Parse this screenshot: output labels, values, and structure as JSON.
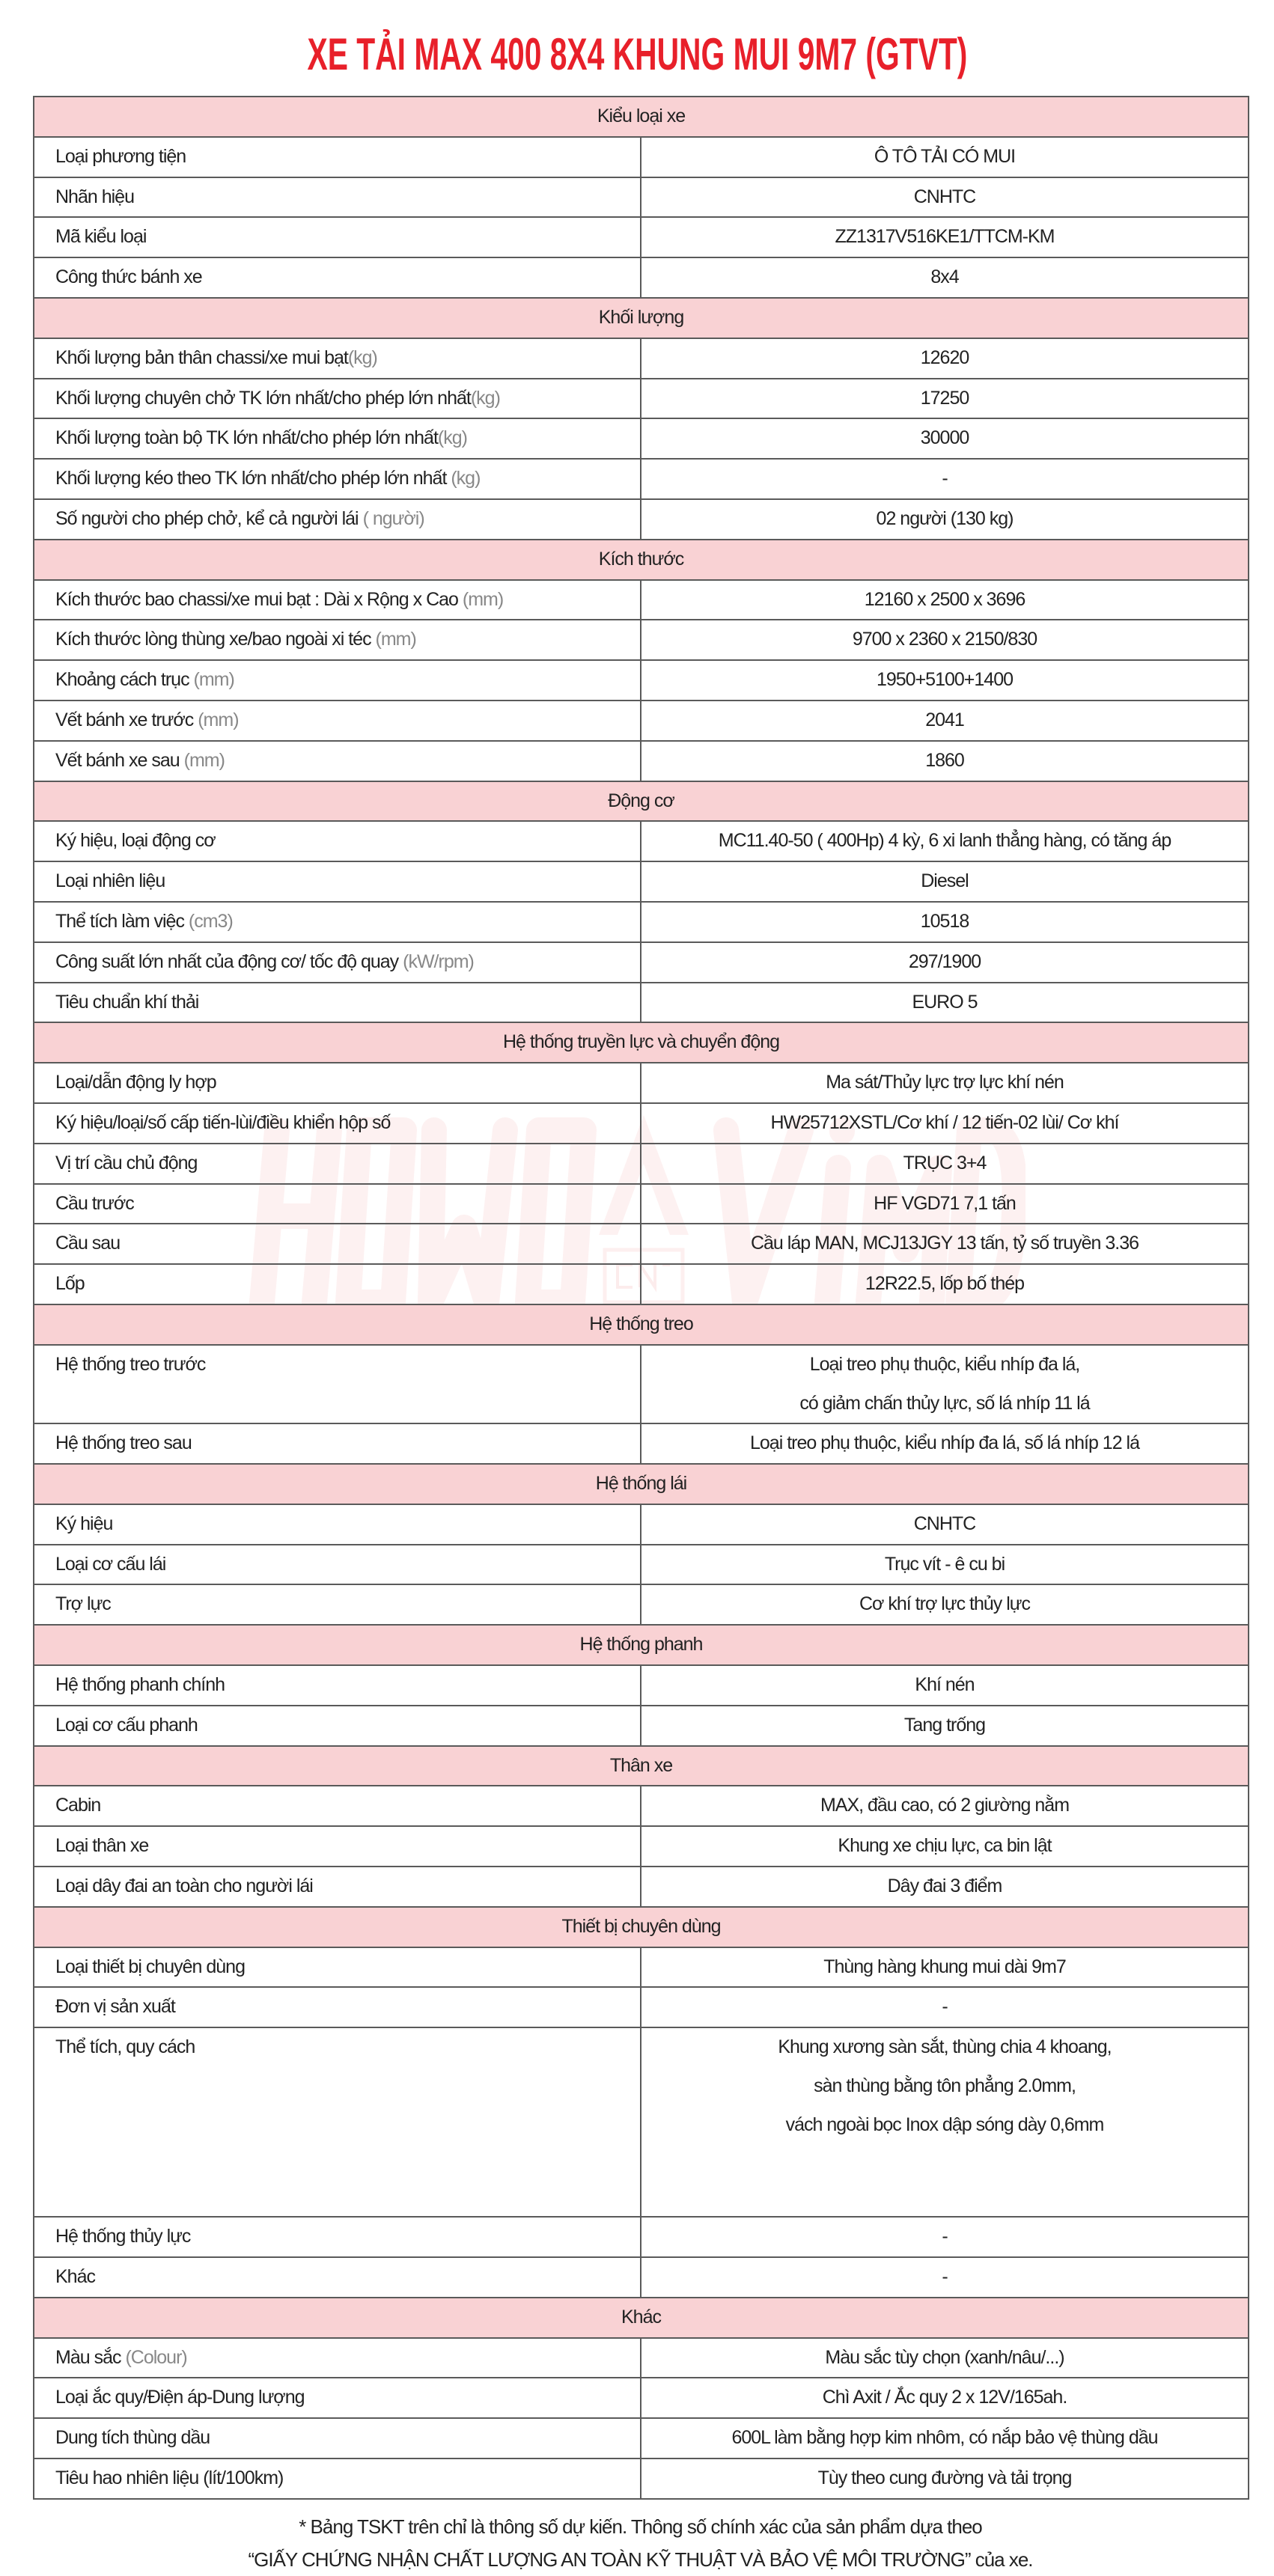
{
  "title": "XE TẢI MAX 400 8X4 KHUNG MUI 9M7 (GTVT)",
  "watermark": {
    "left": "HOWO",
    "right": "VIMID",
    "logo": "CNHTC"
  },
  "colors": {
    "title": "#e8202a",
    "section_bg": "#f9d2d4",
    "border": "#5a5a5a",
    "unit": "#888888"
  },
  "sections": [
    {
      "title": "Kiểu loại xe",
      "rows": [
        {
          "label": "Loại phương tiện",
          "unit": "",
          "value": [
            "Ô TÔ TẢI CÓ MUI"
          ]
        },
        {
          "label": "Nhãn hiệu",
          "unit": "",
          "value": [
            "CNHTC"
          ]
        },
        {
          "label": "Mã kiểu loại",
          "unit": "",
          "value": [
            "ZZ1317V516KE1/TTCM-KM"
          ]
        },
        {
          "label": "Công thức bánh xe",
          "unit": "",
          "value": [
            "8x4"
          ]
        }
      ]
    },
    {
      "title": "Khối lượng",
      "rows": [
        {
          "label": "Khối lượng bản thân chassi/xe mui bạt",
          "unit": "(kg)",
          "value": [
            "12620"
          ]
        },
        {
          "label": "Khối lượng chuyên chở TK lớn nhất/cho phép lớn nhất",
          "unit": "(kg)",
          "value": [
            "17250"
          ]
        },
        {
          "label": "Khối lượng toàn bộ TK lớn nhất/cho phép lớn nhất",
          "unit": "(kg)",
          "value": [
            "30000"
          ]
        },
        {
          "label": "Khối lượng kéo theo TK lớn nhất/cho phép lớn nhất ",
          "unit": "(kg)",
          "value": [
            "-"
          ]
        },
        {
          "label": "Số người cho phép chở, kể cả người lái ",
          "unit": "( người)",
          "value": [
            "02 người  (130 kg)"
          ]
        }
      ]
    },
    {
      "title": "Kích thước",
      "rows": [
        {
          "label": "Kích thước bao chassi/xe mui bạt : Dài x Rộng x Cao ",
          "unit": "(mm)",
          "value": [
            "12160 x 2500 x 3696"
          ]
        },
        {
          "label": "Kích thước lòng thùng xe/bao ngoài xi téc ",
          "unit": "(mm)",
          "value": [
            "9700 x 2360 x 2150/830"
          ]
        },
        {
          "label": "Khoảng cách trục ",
          "unit": "(mm)",
          "value": [
            "1950+5100+1400"
          ]
        },
        {
          "label": "Vết bánh xe trước ",
          "unit": "(mm)",
          "value": [
            "2041"
          ]
        },
        {
          "label": "Vết bánh xe sau ",
          "unit": "(mm)",
          "value": [
            "1860"
          ]
        }
      ]
    },
    {
      "title": "Động cơ",
      "rows": [
        {
          "label": "Ký hiệu, loại động cơ",
          "unit": "",
          "value": [
            "MC11.40-50 ( 400Hp) 4 kỳ, 6 xi lanh thẳng hàng, có tăng áp"
          ]
        },
        {
          "label": "Loại nhiên liệu",
          "unit": "",
          "value": [
            "Diesel"
          ]
        },
        {
          "label": "Thể tích làm việc ",
          "unit": "(cm3)",
          "value": [
            "10518"
          ]
        },
        {
          "label": "Công suất lớn nhất của động cơ/ tốc độ quay ",
          "unit": "(kW/rpm)",
          "value": [
            "297/1900"
          ]
        },
        {
          "label": "Tiêu chuẩn khí thải",
          "unit": "",
          "value": [
            "EURO 5"
          ]
        }
      ]
    },
    {
      "title": "Hệ thống truyền lực và chuyển động",
      "rows": [
        {
          "label": "Loại/dẫn động ly hợp",
          "unit": "",
          "value": [
            "Ma sát/Thủy lực trợ lực khí nén"
          ]
        },
        {
          "label": "Ký hiệu/loại/số cấp tiến-lùi/điều khiển hộp số",
          "unit": "",
          "value": [
            "HW25712XSTL/Cơ khí / 12 tiến-02 lùi/ Cơ khí"
          ]
        },
        {
          "label": "Vị trí cầu chủ động",
          "unit": "",
          "value": [
            "TRỤC 3+4"
          ]
        },
        {
          "label": "Cầu trước",
          "unit": "",
          "value": [
            "HF VGD71   7,1 tấn"
          ]
        },
        {
          "label": "Cầu sau",
          "unit": "",
          "value": [
            "Cầu láp MAN, MCJ13JGY 13 tấn, tỷ số truyền 3.36"
          ]
        },
        {
          "label": "Lốp",
          "unit": "",
          "value": [
            "12R22.5, lốp bố thép"
          ]
        }
      ]
    },
    {
      "title": "Hệ thống treo",
      "rows": [
        {
          "label": "Hệ thống treo trước",
          "unit": "",
          "value": [
            "Loại treo phụ thuộc, kiểu nhíp đa lá,",
            "có giảm chấn thủy lực, số lá nhíp 11 lá"
          ]
        },
        {
          "label": "Hệ thống treo sau",
          "unit": "",
          "value": [
            "Loại treo phụ thuộc, kiểu nhíp đa lá, số lá nhíp 12 lá"
          ]
        }
      ]
    },
    {
      "title": "Hệ thống lái",
      "rows": [
        {
          "label": "Ký hiệu",
          "unit": "",
          "value": [
            "CNHTC"
          ]
        },
        {
          "label": "Loại cơ cấu lái",
          "unit": "",
          "value": [
            "Trục vít - ê cu bi"
          ]
        },
        {
          "label": "Trợ lực",
          "unit": "",
          "value": [
            "Cơ khí trợ lực thủy lực"
          ]
        }
      ]
    },
    {
      "title": "Hệ thống phanh",
      "rows": [
        {
          "label": "Hệ thống phanh chính",
          "unit": "",
          "value": [
            "Khí nén"
          ]
        },
        {
          "label": "Loại cơ cấu phanh",
          "unit": "",
          "value": [
            "Tang trống"
          ]
        }
      ]
    },
    {
      "title": "Thân xe",
      "rows": [
        {
          "label": "Cabin",
          "unit": "",
          "value": [
            "MAX, đầu cao, có 2 giường nằm"
          ]
        },
        {
          "label": "Loại thân xe",
          "unit": "",
          "value": [
            "Khung xe chịu lực, ca bin lật"
          ]
        },
        {
          "label": "Loại dây đai an toàn cho người lái",
          "unit": "",
          "value": [
            "Dây đai 3 điểm"
          ]
        }
      ]
    },
    {
      "title": "Thiết bị chuyên dùng",
      "rows": [
        {
          "label": "Loại thiết bị chuyên dùng",
          "unit": "",
          "value": [
            "Thùng hàng khung mui dài 9m7"
          ]
        },
        {
          "label": "Đơn vị sản xuất",
          "unit": "",
          "value": [
            "-"
          ]
        },
        {
          "label": "Thể tích, quy cách",
          "unit": "",
          "value": [
            "Khung xương sàn sắt, thùng chia 4 khoang,",
            "sàn thùng bằng tôn phẳng 2.0mm,",
            "vách ngoài bọc Inox dập sóng dày 0,6mm"
          ],
          "tall": true
        },
        {
          "label": "Hệ thống thủy lực",
          "unit": "",
          "value": [
            "-"
          ]
        },
        {
          "label": "Khác",
          "unit": "",
          "value": [
            "-"
          ]
        }
      ]
    },
    {
      "title": "Khác",
      "rows": [
        {
          "label": "Màu sắc ",
          "unit": "(Colour)",
          "value": [
            "Màu sắc tùy chọn (xanh/nâu/...)"
          ]
        },
        {
          "label": "Loại ắc quy/Điện áp-Dung lượng",
          "unit": "",
          "value": [
            "Chì Axit / Ắc quy 2 x 12V/165ah."
          ]
        },
        {
          "label": "Dung tích thùng dầu",
          "unit": "",
          "value": [
            "600L làm bằng hợp kim nhôm, có nắp bảo vệ thùng dầu"
          ]
        },
        {
          "label": "Tiêu hao nhiên liệu (lít/100km)",
          "unit": "",
          "value": [
            "Tùy theo cung đường và tải trọng"
          ]
        }
      ]
    }
  ],
  "footer": {
    "line1": "* Bảng TSKT trên chỉ là thông số dự kiến. Thông số chính xác của sản phẩm dựa theo",
    "line2": "“GIẤY CHỨNG NHẬN CHẤT LƯỢNG AN TOÀN KỸ THUẬT VÀ BẢO VỆ MÔI TRƯỜNG” của xe."
  }
}
